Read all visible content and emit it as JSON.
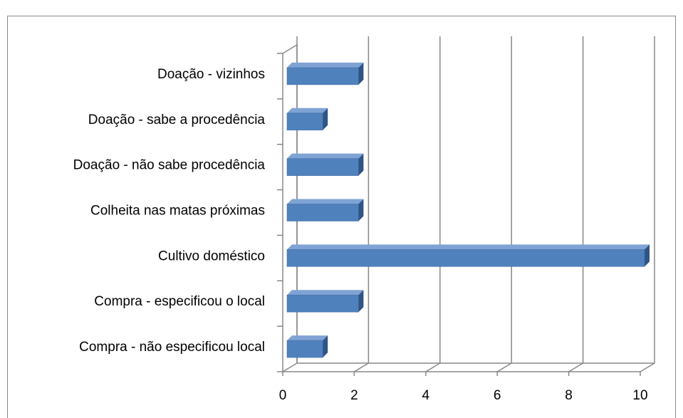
{
  "chart_data": {
    "type": "bar3d_horizontal",
    "categories": [
      "Doação - vizinhos",
      "Doação - sabe a procedência",
      "Doação - não sabe procedência",
      "Colheita nas matas próximas",
      "Cultivo doméstico",
      "Compra - especificou o local",
      "Compra - não especificou local"
    ],
    "values": [
      2,
      1,
      2,
      2,
      10,
      2,
      1
    ],
    "color": "#4f81bd",
    "xlim": [
      0,
      10
    ],
    "xticks": [
      0,
      2,
      4,
      6,
      8,
      10
    ],
    "grid": true
  }
}
